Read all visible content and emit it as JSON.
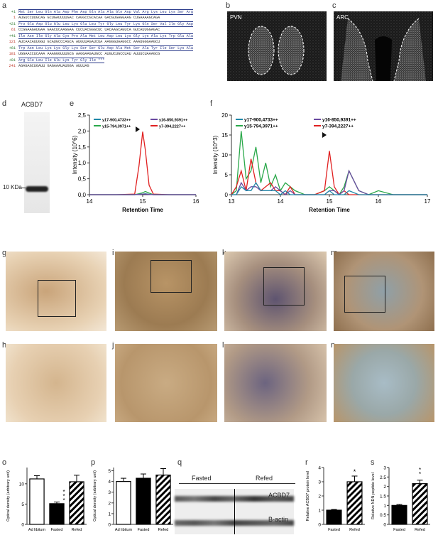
{
  "panels": {
    "a": "a",
    "b": "b",
    "c": "c",
    "d": "d",
    "e": "e",
    "f": "f",
    "g": "g",
    "h": "h",
    "i": "i",
    "j": "j",
    "k": "k",
    "l": "l",
    "m": "m",
    "n": "n",
    "o": "o",
    "p": "p",
    "q": "q",
    "r": "r",
    "s": "s"
  },
  "sequence": {
    "rows": [
      {
        "aa_num": "+1",
        "aa": "Met Ser Leu Gln Ala Asp Phe Asp Gln Ala Ala Gln Asp Val Arg Lys Leu Lys Ser Arg",
        "nt_num": "1",
        "nt": "AUGUCCUUGCAG GCUGAUUUUGAC CAGGCCGCACAA GACGUGAGGAAG CUGAAAAGCAGA"
      },
      {
        "aa_num": "+21",
        "aa": "Pro Glu Asp Glu Glu Leu Lys Glu Leu Tyr Gly Leu Tyr Lys Gln Ser Val Ile Gly Asp",
        "nt_num": "61",
        "nt": "CCGGAAGAUGAA GAACUCAAGGAA CUCUACGGGCUC UACAAGCAGUCA GUCAUUGGAGAC"
      },
      {
        "aa_num": "+41",
        "aa": "Ile Asn Ile Gly Ala Cys Pro Ala Met Leu Asp Leu Lys Gly Lys Ala Lys Trp Glu Ala",
        "nt_num": "121",
        "nt": "AUCAACAUUGGU GCAUGCCCAGCA AUGUUAGAUCUA AAGGGUAAGGCC AAAUGGGAAGCU"
      },
      {
        "aa_num": "+61",
        "aa": "Trp Asn Leu Lys Lys Gly Lys Ser Ser Glu Asp Ala Met Ser Ala Tyr Ile Ser Lys Ala",
        "nt_num": "181",
        "nt": "UGGAACCUCAAA AAAGGGUUUGCG AAGGAAGAUGCC AUGUCUGCCUAU AUUUCUAAAGCG"
      },
      {
        "aa_num": "+81",
        "aa": "Arg Glu Leu Ile Glu Lys Tyr Gly Ile ***",
        "nt_num": "241",
        "nt": "AGAGAGCUGAUU GAGAAAUAUGGA AUUUAG"
      }
    ]
  },
  "micro": {
    "b_label": "PVN",
    "c_label": "ARC"
  },
  "blot_d": {
    "title": "ACBD7",
    "marker": "10 KDa"
  },
  "chart_e": {
    "type": "line",
    "xlabel": "Retention Time",
    "ylabel": "Intensity (10^6)",
    "xlim": [
      14,
      16
    ],
    "ylim": [
      0,
      2.5
    ],
    "xticks": [
      "14",
      "15",
      "16"
    ],
    "yticks": [
      "0,0",
      "0,5",
      "1,0",
      "1,5",
      "2,0",
      "2,5"
    ],
    "legend": [
      "y17-900,4733++",
      "y16-850,9391++",
      "y15-794,3971++",
      "y7-394,2227++"
    ]
  },
  "chart_f": {
    "type": "line",
    "xlabel": "Retention Time",
    "ylabel": "Intensity (10^3)",
    "xlim": [
      13,
      17
    ],
    "ylim": [
      0,
      20
    ],
    "xticks": [
      "13",
      "14",
      "15",
      "16",
      "17"
    ],
    "yticks": [
      "0",
      "5",
      "10",
      "15",
      "20"
    ],
    "legend": [
      "y17-900,4733++",
      "y16-850,9391++",
      "y15-794,3971++",
      "y7-394,2227++"
    ]
  },
  "chart_data": [
    {
      "type": "line",
      "id": "e",
      "x": [
        14,
        14.5,
        14.85,
        14.93,
        15.0,
        15.05,
        15.12,
        15.2,
        15.5,
        16
      ],
      "series": [
        {
          "name": "y7-394,2227++",
          "color": "#e02020",
          "values": [
            0,
            0,
            0.02,
            0.9,
            1.98,
            1.4,
            0.3,
            0.02,
            0,
            0
          ]
        },
        {
          "name": "y15-794,3971++",
          "color": "#2aa84a",
          "values": [
            0,
            0,
            0,
            0.03,
            0.06,
            0.1,
            0.05,
            0,
            0,
            0
          ]
        },
        {
          "name": "y17-900,4733++",
          "color": "#1e88a8",
          "values": [
            0,
            0,
            0,
            0.01,
            0.02,
            0.03,
            0.01,
            0,
            0,
            0
          ]
        },
        {
          "name": "y16-850,9391++",
          "color": "#6a4aa0",
          "values": [
            0,
            0,
            0,
            0.01,
            0.02,
            0.02,
            0.01,
            0,
            0,
            0
          ]
        }
      ]
    },
    {
      "type": "line",
      "id": "f",
      "x": [
        13,
        13.1,
        13.2,
        13.3,
        13.4,
        13.5,
        13.6,
        13.7,
        13.8,
        13.9,
        14.0,
        14.1,
        14.2,
        14.3,
        14.5,
        14.7,
        14.9,
        15.0,
        15.1,
        15.2,
        15.3,
        15.4,
        15.6,
        15.8,
        16.0,
        16.3,
        16.6,
        17.0
      ],
      "series": [
        {
          "name": "y15-794,3971++",
          "color": "#2aa84a",
          "values": [
            0,
            1,
            16,
            4,
            6,
            12,
            3,
            8,
            2,
            5,
            1,
            3,
            2,
            1,
            0,
            0,
            1,
            2,
            1,
            0,
            2,
            6,
            1,
            0,
            1,
            0,
            0,
            0
          ]
        },
        {
          "name": "y7-394,2227++",
          "color": "#e02020",
          "values": [
            0,
            2,
            6,
            1,
            9,
            3,
            1,
            2,
            3,
            1,
            1,
            0,
            2,
            0,
            0,
            0,
            1,
            11,
            2,
            0,
            1,
            0,
            0,
            0,
            0,
            0,
            0,
            0
          ]
        },
        {
          "name": "y16-850,9391++",
          "color": "#6a4aa0",
          "values": [
            0,
            0,
            3,
            1,
            2,
            2,
            1,
            1,
            1,
            2,
            1,
            0,
            1,
            0,
            0,
            0,
            0,
            1,
            1,
            0,
            1,
            6,
            1,
            0,
            0,
            0,
            0,
            0
          ]
        },
        {
          "name": "y17-900,4733++",
          "color": "#1e88a8",
          "values": [
            0,
            0,
            2,
            1,
            1,
            3,
            1,
            1,
            1,
            1,
            0,
            1,
            0,
            0,
            0,
            0,
            0,
            1,
            0,
            0,
            0,
            1,
            0,
            0,
            0,
            0,
            0,
            0
          ]
        }
      ]
    },
    {
      "type": "bar",
      "id": "o",
      "ylabel": "Optical density (arbitrary unit)",
      "categories": [
        "Ad libitum",
        "Fasted",
        "Refed"
      ],
      "values": [
        11.2,
        5.1,
        10.5
      ],
      "errors": [
        0.8,
        0.4,
        1.6
      ],
      "yticks": [
        "0",
        "5",
        "10"
      ],
      "ylim": [
        0,
        14
      ],
      "annotation": "***"
    },
    {
      "type": "bar",
      "id": "p",
      "ylabel": "Optical density (arbitrary unit)",
      "categories": [
        "Ad libitum",
        "Fasted",
        "Refed"
      ],
      "values": [
        4.0,
        4.3,
        4.6
      ],
      "errors": [
        0.3,
        0.4,
        0.6
      ],
      "yticks": [
        "0",
        "1",
        "2",
        "3",
        "4",
        "5"
      ],
      "ylim": [
        0,
        5.3
      ]
    },
    {
      "type": "bar",
      "id": "r",
      "ylabel": "Relative ACBD7 protein level",
      "categories": [
        "Fasted",
        "Refed"
      ],
      "values": [
        1.0,
        3.0
      ],
      "errors": [
        0.05,
        0.4
      ],
      "yticks": [
        "0",
        "1",
        "2",
        "3",
        "4"
      ],
      "ylim": [
        0,
        4
      ],
      "annotation": "*"
    },
    {
      "type": "bar",
      "id": "s",
      "ylabel": "Relative NDN peptide level",
      "categories": [
        "Fasted",
        "Refed"
      ],
      "values": [
        1.0,
        2.15
      ],
      "errors": [
        0.05,
        0.18
      ],
      "yticks": [
        "0",
        "0.5",
        "1",
        "1.5",
        "2",
        "2.5",
        "3"
      ],
      "ylim": [
        0,
        3
      ],
      "annotation": "**"
    }
  ],
  "blot_q": {
    "left_group": "Fasted",
    "right_group": "Refed",
    "band1": "ACBD7",
    "band2": "B-actin"
  }
}
